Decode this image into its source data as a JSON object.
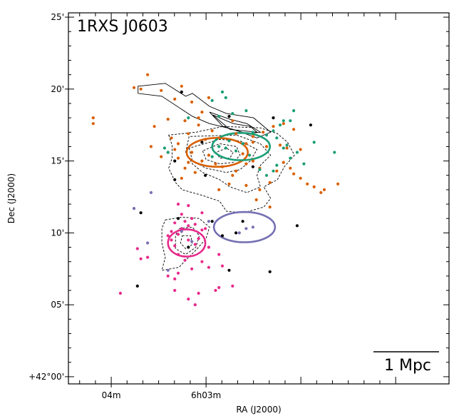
{
  "chart_data": {
    "type": "scatter",
    "title": "1RXS J0603",
    "xlabel": "RA (J2000)",
    "ylabel": "Dec (J2000)",
    "x_unit": "arcmin offset east of RA 6h03m",
    "y_unit": "arcmin offset north of Dec +42°00'",
    "xlim": [
      4.05,
      -7.15
    ],
    "ylim": [
      -0.5,
      25.3
    ],
    "x_ticks": [
      {
        "value": 2.79,
        "label": "04m"
      },
      {
        "value": 0,
        "label": "6h03m"
      }
    ],
    "y_ticks": [
      {
        "value": 0,
        "label": "+42°00'"
      },
      {
        "value": 5,
        "label": "05'"
      },
      {
        "value": 10,
        "label": "10'"
      },
      {
        "value": 15,
        "label": "15'"
      },
      {
        "value": 20,
        "label": "20'"
      },
      {
        "value": 25,
        "label": "25'"
      }
    ],
    "scale_bar": {
      "label": "1 Mpc",
      "length": 1.89
    },
    "series": [
      {
        "color": "#d95f02",
        "points": [
          [
            1.72,
            21.0
          ],
          [
            0.72,
            20.2
          ],
          [
            2.12,
            20.1
          ],
          [
            1.92,
            20.0
          ],
          [
            1.32,
            19.9
          ],
          [
            0.92,
            19.3
          ],
          [
            -0.08,
            19.4
          ],
          [
            0.42,
            19.1
          ],
          [
            0.12,
            18.4
          ],
          [
            0.22,
            18.0
          ],
          [
            0.62,
            17.8
          ],
          [
            1.12,
            17.9
          ],
          [
            1.52,
            17.4
          ],
          [
            0.22,
            17.5
          ],
          [
            -0.78,
            17.8
          ],
          [
            -0.18,
            17.1
          ],
          [
            0.52,
            16.9
          ],
          [
            1.02,
            16.6
          ],
          [
            0.82,
            16.2
          ],
          [
            0.02,
            16.5
          ],
          [
            -0.38,
            16.6
          ],
          [
            -0.88,
            16.9
          ],
          [
            -1.38,
            16.7
          ],
          [
            -1.68,
            17.0
          ],
          [
            -1.98,
            17.4
          ],
          [
            -2.28,
            17.6
          ],
          [
            -2.58,
            17.2
          ],
          [
            -1.18,
            16.2
          ],
          [
            -1.38,
            16.3
          ],
          [
            -1.78,
            16.0
          ],
          [
            -2.18,
            16.1
          ],
          [
            -2.38,
            15.9
          ],
          [
            -2.48,
            14.5
          ],
          [
            -2.58,
            14.1
          ],
          [
            -2.78,
            13.8
          ],
          [
            -2.98,
            13.4
          ],
          [
            -3.18,
            13.2
          ],
          [
            -3.48,
            13.0
          ],
          [
            -3.38,
            12.8
          ],
          [
            -3.88,
            13.4
          ],
          [
            -2.28,
            14.9
          ],
          [
            -2.08,
            14.3
          ],
          [
            -1.88,
            13.5
          ],
          [
            -1.48,
            12.3
          ],
          [
            -1.58,
            13.0
          ],
          [
            -1.88,
            11.8
          ],
          [
            -1.18,
            13.3
          ],
          [
            -0.78,
            14.0
          ],
          [
            -0.48,
            14.6
          ],
          [
            -0.28,
            14.8
          ],
          [
            -0.08,
            15.4
          ],
          [
            0.12,
            15.0
          ],
          [
            0.32,
            14.2
          ],
          [
            0.72,
            13.8
          ],
          [
            0.52,
            14.9
          ],
          [
            0.82,
            15.2
          ],
          [
            1.12,
            15.6
          ],
          [
            1.32,
            15.3
          ],
          [
            1.62,
            16.0
          ],
          [
            3.32,
            18.0
          ],
          [
            3.32,
            17.6
          ],
          [
            0.92,
            15.8
          ],
          [
            0.42,
            15.6
          ],
          [
            0.62,
            14.5
          ],
          [
            -1.08,
            15.5
          ],
          [
            -1.38,
            15.0
          ],
          [
            -0.88,
            14.3
          ],
          [
            -0.68,
            13.4
          ],
          [
            -1.18,
            14.8
          ],
          [
            -1.58,
            14.5
          ],
          [
            -0.38,
            13.0
          ],
          [
            -2.78,
            15.8
          ]
        ]
      },
      {
        "color": "#1b9e77",
        "points": [
          [
            -0.48,
            19.8
          ],
          [
            -0.58,
            19.4
          ],
          [
            -0.18,
            19.2
          ],
          [
            0.52,
            18.0
          ],
          [
            -0.38,
            18.1
          ],
          [
            -0.78,
            18.3
          ],
          [
            -1.18,
            18.5
          ],
          [
            -2.58,
            18.5
          ],
          [
            -2.48,
            17.8
          ],
          [
            -2.28,
            17.8
          ],
          [
            -2.18,
            17.5
          ],
          [
            -1.98,
            17.1
          ],
          [
            -2.08,
            16.6
          ],
          [
            -2.38,
            16.1
          ],
          [
            -2.28,
            15.9
          ],
          [
            -2.68,
            15.6
          ],
          [
            -2.48,
            15.2
          ],
          [
            -2.08,
            14.7
          ],
          [
            -1.98,
            14.3
          ],
          [
            -1.78,
            14.0
          ],
          [
            -1.58,
            14.4
          ],
          [
            -1.28,
            15.4
          ],
          [
            -1.08,
            16.2
          ],
          [
            -0.68,
            16.4
          ],
          [
            -0.88,
            15.7
          ],
          [
            -0.38,
            16.0
          ],
          [
            -3.18,
            16.3
          ],
          [
            -3.78,
            15.6
          ],
          [
            -2.88,
            14.8
          ],
          [
            1.22,
            15.9
          ],
          [
            1.12,
            15.6
          ],
          [
            -0.18,
            15.3
          ],
          [
            -0.58,
            15.9
          ],
          [
            -1.38,
            17.0
          ],
          [
            -1.78,
            16.8
          ]
        ]
      },
      {
        "color": "#7570b3",
        "points": [
          [
            1.62,
            12.8
          ],
          [
            2.12,
            11.7
          ],
          [
            -0.08,
            10.8
          ],
          [
            -1.18,
            10.3
          ],
          [
            -1.38,
            10.4
          ],
          [
            -0.98,
            10.0
          ],
          [
            1.72,
            9.3
          ],
          [
            1.12,
            7.4
          ],
          [
            0.72,
            10.1
          ],
          [
            0.42,
            9.4
          ]
        ]
      },
      {
        "color": "#e7298a",
        "points": [
          [
            0.82,
            12.0
          ],
          [
            0.52,
            11.9
          ],
          [
            0.72,
            11.3
          ],
          [
            0.42,
            11.0
          ],
          [
            0.32,
            10.6
          ],
          [
            0.12,
            10.2
          ],
          [
            0.22,
            9.6
          ],
          [
            0.52,
            9.5
          ],
          [
            0.82,
            9.9
          ],
          [
            1.02,
            10.1
          ],
          [
            1.12,
            9.8
          ],
          [
            0.72,
            10.3
          ],
          [
            0.52,
            10.5
          ],
          [
            0.92,
            9.1
          ],
          [
            0.82,
            8.5
          ],
          [
            0.62,
            8.1
          ],
          [
            0.42,
            7.5
          ],
          [
            -0.08,
            7.6
          ],
          [
            -0.48,
            7.7
          ],
          [
            -0.38,
            8.5
          ],
          [
            -0.08,
            9.0
          ],
          [
            1.92,
            8.2
          ],
          [
            1.72,
            8.3
          ],
          [
            2.02,
            8.9
          ],
          [
            1.12,
            7.0
          ],
          [
            0.82,
            7.2
          ],
          [
            0.92,
            6.8
          ],
          [
            0.92,
            6.0
          ],
          [
            0.22,
            5.8
          ],
          [
            -0.28,
            6.0
          ],
          [
            -0.38,
            6.2
          ],
          [
            -0.78,
            6.3
          ],
          [
            0.52,
            5.4
          ],
          [
            0.32,
            5.0
          ],
          [
            2.52,
            5.8
          ],
          [
            0.12,
            8.0
          ],
          [
            0.32,
            9.2
          ],
          [
            0.62,
            10.8
          ],
          [
            0.12,
            11.4
          ],
          [
            0.02,
            10.3
          ],
          [
            0.92,
            10.7
          ],
          [
            1.02,
            9.5
          ]
        ]
      },
      {
        "color": "#000000",
        "points": [
          [
            0.72,
            19.8
          ],
          [
            -1.98,
            18.0
          ],
          [
            0.92,
            13.7
          ],
          [
            1.92,
            11.4
          ],
          [
            0.82,
            11.0
          ],
          [
            -0.88,
            10.0
          ],
          [
            -1.08,
            10.8
          ],
          [
            -0.48,
            9.8
          ],
          [
            -1.88,
            7.3
          ],
          [
            -0.68,
            7.4
          ],
          [
            2.02,
            6.3
          ],
          [
            0.12,
            16.3
          ],
          [
            0.92,
            15.0
          ],
          [
            -0.68,
            18.1
          ],
          [
            -0.18,
            10.8
          ],
          [
            -2.68,
            10.5
          ],
          [
            0.52,
            9.0
          ],
          [
            -1.38,
            14.6
          ],
          [
            -3.08,
            17.5
          ],
          [
            0.02,
            14.0
          ]
        ]
      }
    ],
    "rings": [
      {
        "color": "#d95f02",
        "cx": -0.33,
        "cy": 15.6,
        "rx": 0.9,
        "ry": 1.0
      },
      {
        "color": "#1b9e77",
        "cx": -1.03,
        "cy": 16.0,
        "rx": 0.85,
        "ry": 0.95
      },
      {
        "color": "#7570b3",
        "cx": -1.13,
        "cy": 10.4,
        "rx": 0.9,
        "ry": 1.05
      },
      {
        "color": "#e7298a",
        "cx": 0.57,
        "cy": 9.3,
        "rx": 0.55,
        "ry": 0.95
      }
    ],
    "x_ray_contours": [
      [
        [
          2.0,
          20.2
        ],
        [
          1.2,
          20.4
        ],
        [
          0.6,
          19.5
        ],
        [
          0.4,
          19.7
        ],
        [
          -0.1,
          18.8
        ],
        [
          -0.6,
          18.3
        ],
        [
          -1.4,
          18.0
        ],
        [
          -1.9,
          17.0
        ],
        [
          -1.5,
          16.6
        ],
        [
          -0.8,
          17.2
        ],
        [
          -0.1,
          17.6
        ],
        [
          0.4,
          18.1
        ],
        [
          1.3,
          19.5
        ],
        [
          2.0,
          19.7
        ],
        [
          2.0,
          20.2
        ]
      ],
      [
        [
          -0.1,
          18.4
        ],
        [
          -0.7,
          17.9
        ],
        [
          -1.2,
          17.6
        ],
        [
          -1.6,
          17.0
        ],
        [
          -1.2,
          16.9
        ],
        [
          -0.5,
          17.4
        ],
        [
          -0.1,
          18.4
        ]
      ],
      [
        [
          -0.2,
          18.2
        ],
        [
          -0.8,
          17.6
        ],
        [
          -1.3,
          17.4
        ],
        [
          -1.5,
          17.0
        ],
        [
          -0.7,
          17.2
        ],
        [
          -0.2,
          18.2
        ]
      ]
    ],
    "lensing_contours": [
      [
        [
          1.1,
          16.8
        ],
        [
          1.0,
          16.1
        ],
        [
          1.0,
          15.2
        ],
        [
          1.1,
          14.5
        ],
        [
          0.9,
          13.5
        ],
        [
          0.7,
          13.0
        ],
        [
          0.1,
          12.6
        ],
        [
          -0.4,
          12.2
        ],
        [
          -0.6,
          11.5
        ],
        [
          -1.1,
          11.4
        ],
        [
          -1.7,
          11.8
        ],
        [
          -1.9,
          12.4
        ],
        [
          -1.7,
          13.2
        ],
        [
          -2.1,
          13.7
        ],
        [
          -2.3,
          14.6
        ],
        [
          -2.6,
          15.4
        ],
        [
          -2.4,
          16.3
        ],
        [
          -2.1,
          16.9
        ],
        [
          -1.6,
          17.3
        ],
        [
          -0.5,
          17.4
        ],
        [
          0.3,
          17.0
        ],
        [
          1.1,
          16.8
        ]
      ],
      [
        [
          0.5,
          16.7
        ],
        [
          0.6,
          15.6
        ],
        [
          0.4,
          14.8
        ],
        [
          0.1,
          14.2
        ],
        [
          -0.4,
          13.7
        ],
        [
          -0.7,
          13.2
        ],
        [
          -1.2,
          12.8
        ],
        [
          -1.6,
          13.2
        ],
        [
          -1.5,
          14.0
        ],
        [
          -1.6,
          14.7
        ],
        [
          -1.9,
          15.4
        ],
        [
          -1.6,
          16.2
        ],
        [
          -0.9,
          16.8
        ],
        [
          0.5,
          16.7
        ]
      ],
      [
        [
          0.5,
          15.9
        ],
        [
          0.4,
          15.0
        ],
        [
          0.0,
          14.5
        ],
        [
          -0.6,
          14.2
        ],
        [
          -1.0,
          14.4
        ],
        [
          -1.3,
          15.0
        ],
        [
          -1.5,
          15.8
        ],
        [
          -1.0,
          16.4
        ],
        [
          -0.4,
          16.5
        ],
        [
          0.5,
          15.9
        ]
      ],
      [
        [
          0.1,
          15.7
        ],
        [
          0.0,
          15.1
        ],
        [
          -0.4,
          14.8
        ],
        [
          -0.8,
          14.9
        ],
        [
          -1.0,
          15.4
        ],
        [
          -0.9,
          16.0
        ],
        [
          -0.4,
          16.2
        ],
        [
          0.1,
          15.7
        ]
      ],
      [
        [
          -0.3,
          15.6
        ],
        [
          -0.4,
          15.2
        ],
        [
          -0.7,
          15.2
        ],
        [
          -0.8,
          15.6
        ],
        [
          -0.6,
          15.9
        ],
        [
          -0.3,
          15.6
        ]
      ],
      [
        [
          1.2,
          10.9
        ],
        [
          0.7,
          11.1
        ],
        [
          0.2,
          11.0
        ],
        [
          -0.1,
          10.4
        ],
        [
          0.0,
          9.6
        ],
        [
          0.3,
          8.8
        ],
        [
          0.6,
          8.1
        ],
        [
          0.8,
          7.6
        ],
        [
          1.3,
          7.4
        ],
        [
          1.2,
          8.3
        ],
        [
          1.3,
          9.3
        ],
        [
          1.3,
          10.3
        ],
        [
          1.2,
          10.9
        ]
      ],
      [
        [
          0.8,
          10.3
        ],
        [
          0.4,
          10.4
        ],
        [
          0.2,
          9.8
        ],
        [
          0.3,
          9.0
        ],
        [
          0.6,
          8.5
        ],
        [
          0.9,
          8.9
        ],
        [
          0.9,
          9.8
        ],
        [
          0.8,
          10.3
        ]
      ],
      [
        [
          0.7,
          9.8
        ],
        [
          0.45,
          9.8
        ],
        [
          0.4,
          9.2
        ],
        [
          0.6,
          8.9
        ],
        [
          0.75,
          9.3
        ],
        [
          0.7,
          9.8
        ]
      ]
    ]
  }
}
